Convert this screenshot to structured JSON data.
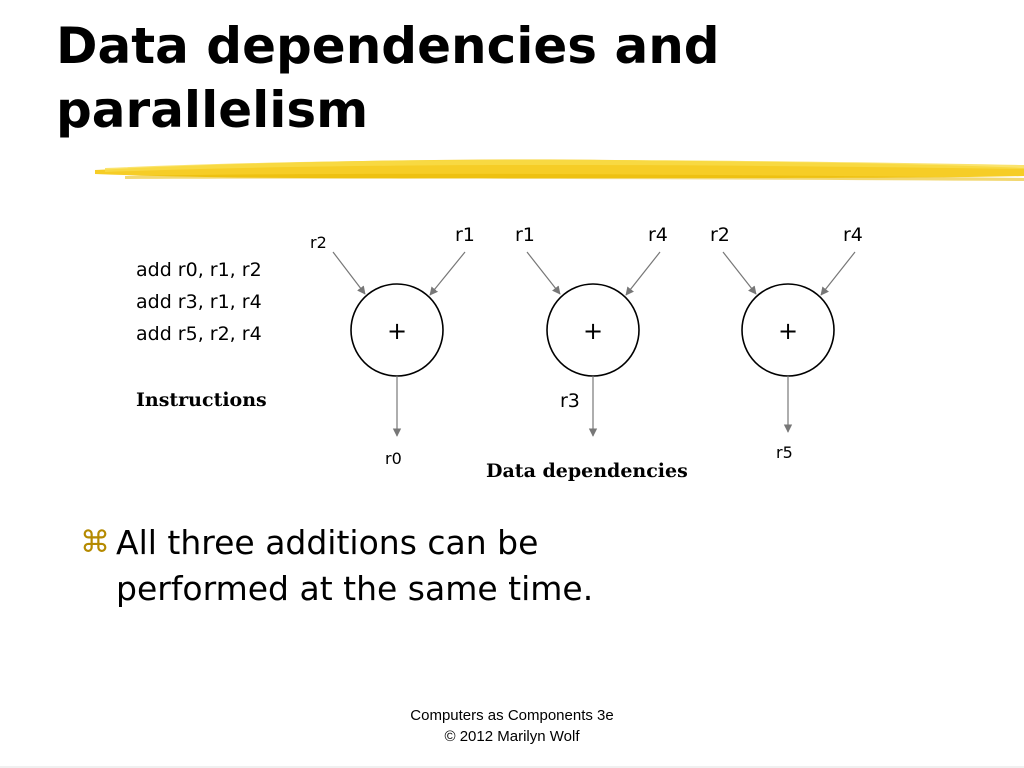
{
  "slide": {
    "title_line1": "Data dependencies and",
    "title_line2": "parallelism"
  },
  "diagram": {
    "instructions": [
      "add r0, r1, r2",
      "add r3, r1, r4",
      "add r5, r2, r4"
    ],
    "instructions_caption": "Instructions",
    "dependencies_caption": "Data dependencies",
    "operator_symbol": "+",
    "nodes": [
      {
        "input_left": "r2",
        "input_right": "r1",
        "output": "r0"
      },
      {
        "input_left": "r1",
        "input_right": "r4",
        "output": "r3"
      },
      {
        "input_left": "r2",
        "input_right": "r4",
        "output": "r5"
      }
    ]
  },
  "bullets": [
    {
      "line1": "All three additions can be",
      "line2": "performed at the same time."
    }
  ],
  "footer": {
    "line1": "Computers as Components 3e",
    "line2": "© 2012 Marilyn Wolf"
  },
  "colors": {
    "highlight_stroke": "#f5c400",
    "bullet_accent": "#b58a00",
    "arrow_gray": "#777777"
  },
  "icons": {
    "bullet": "command-key-icon"
  }
}
